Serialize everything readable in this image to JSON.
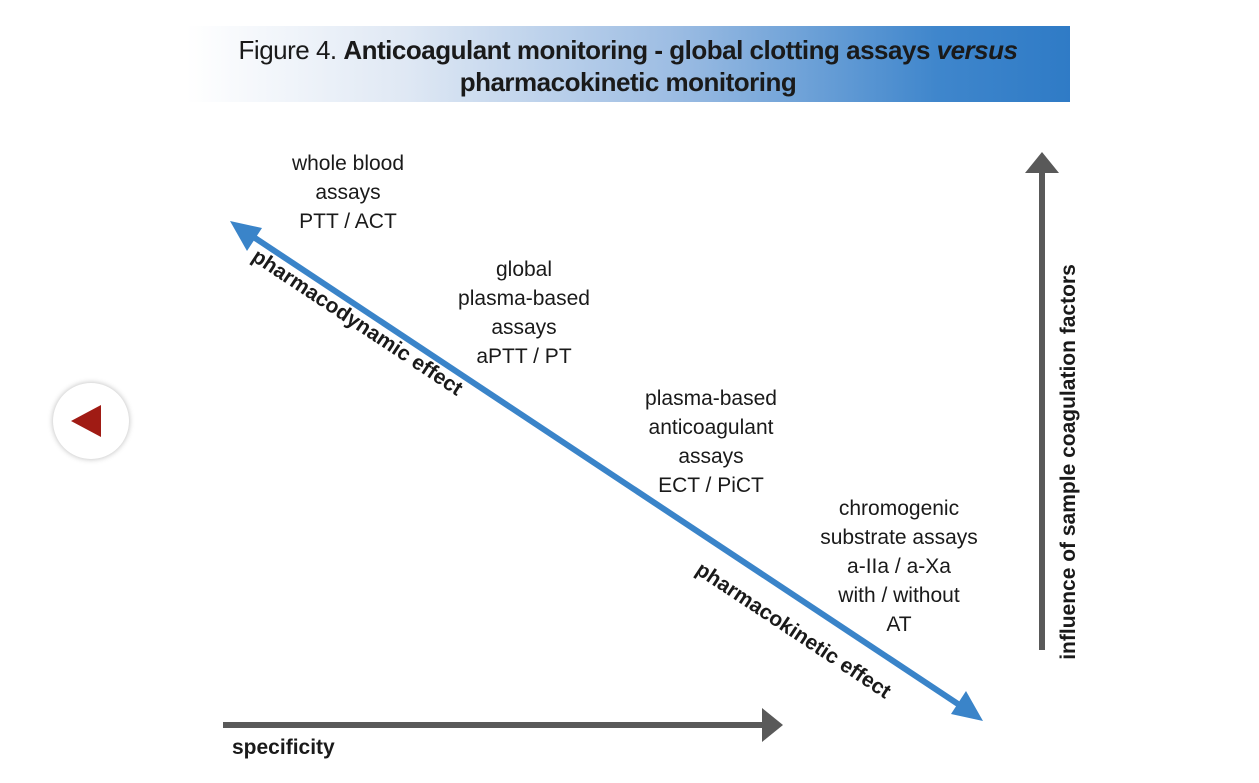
{
  "title": {
    "prefix": "Figure 4. ",
    "bold_part1": "Anticoagulant monitoring - global clotting assays ",
    "italic_part": "versus",
    "line2": "pharmacokinetic monitoring"
  },
  "nav": {
    "prev_icon": "triangle-left-icon",
    "icon_color": "#a01b14"
  },
  "colors": {
    "diagonal_arrow": "#3a84c9",
    "axis_arrow": "#595959"
  },
  "diagonal": {
    "upper_label": "pharmacodynamic effect",
    "lower_label": "pharmacokinetic effect"
  },
  "assays": [
    {
      "lines": [
        "whole blood",
        "assays",
        "PTT / ACT"
      ]
    },
    {
      "lines": [
        "global",
        "plasma-based",
        "assays",
        "aPTT / PT"
      ]
    },
    {
      "lines": [
        "plasma-based",
        "anticoagulant",
        "assays",
        "ECT / PiCT"
      ]
    },
    {
      "lines": [
        "chromogenic",
        "substrate assays",
        "a-IIa / a-Xa",
        "with / without",
        "AT"
      ]
    }
  ],
  "axes": {
    "x_label": "specificity",
    "y_label": "influence of sample coagulation factors"
  }
}
